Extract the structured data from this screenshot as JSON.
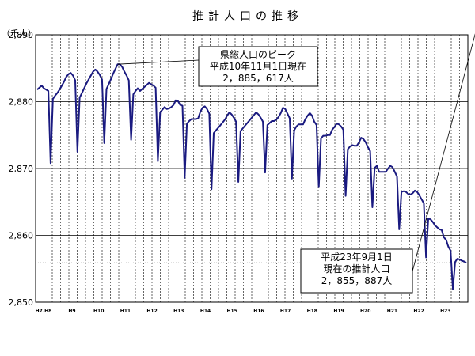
{
  "chart_data": {
    "type": "line",
    "title": "推計人口の推移",
    "ylabel": "（千人）",
    "xlabel": "",
    "ylim": [
      2850,
      2890
    ],
    "yticks": [
      {
        "value": 2850,
        "label": "2,850"
      },
      {
        "value": 2860,
        "label": "2,860"
      },
      {
        "value": 2870,
        "label": "2,870"
      },
      {
        "value": 2880,
        "label": "2,880"
      },
      {
        "value": 2890,
        "label": "2,890"
      }
    ],
    "xticks": [
      "H7.H8",
      "H9",
      "H10",
      "H11",
      "H12",
      "H13",
      "H14",
      "H15",
      "H16",
      "H17",
      "H18",
      "H19",
      "H20",
      "H21",
      "H22",
      "H23"
    ],
    "x_start_label": "H7.H8",
    "grid": {
      "major_y": true,
      "minor_x": true
    },
    "series_color": "#1a1a80",
    "series": [
      {
        "values": [
          2881.8,
          2882.1,
          2882.4,
          2882.0,
          2881.8,
          2881.6,
          2870.8,
          2880.4,
          2880.9,
          2881.3,
          2881.8,
          2882.4,
          2883.0,
          2883.7,
          2884.1,
          2884.3,
          2883.9,
          2883.2,
          2872.5,
          2880.6,
          2881.3,
          2882.0,
          2882.7,
          2883.3,
          2883.9,
          2884.5,
          2884.8,
          2884.5,
          2884.0,
          2883.3,
          2873.8,
          2881.9,
          2882.6,
          2883.4,
          2884.2,
          2884.9,
          2885.6,
          2885.6,
          2885.2,
          2884.5,
          2883.9,
          2883.2,
          2874.3,
          2881.1,
          2881.6,
          2882.0,
          2881.6,
          2881.9,
          2882.2,
          2882.5,
          2882.8,
          2882.6,
          2882.4,
          2882.1,
          2871.1,
          2878.4,
          2878.8,
          2879.2,
          2878.9,
          2879.0,
          2879.2,
          2879.5,
          2880.2,
          2880.1,
          2879.5,
          2879.4,
          2868.6,
          2876.7,
          2877.1,
          2877.4,
          2877.4,
          2877.4,
          2877.5,
          2878.5,
          2879.1,
          2879.3,
          2878.9,
          2878.2,
          2866.9,
          2875.3,
          2875.7,
          2876.1,
          2876.5,
          2876.9,
          2877.3,
          2877.9,
          2878.4,
          2878.1,
          2877.6,
          2877.0,
          2868.0,
          2875.6,
          2876.0,
          2876.4,
          2876.8,
          2877.2,
          2877.6,
          2878.0,
          2878.4,
          2878.1,
          2877.6,
          2877.0,
          2869.4,
          2876.5,
          2876.8,
          2877.1,
          2877.1,
          2877.3,
          2877.7,
          2878.3,
          2879.1,
          2878.9,
          2878.2,
          2877.5,
          2868.5,
          2875.7,
          2876.3,
          2876.6,
          2876.6,
          2876.6,
          2877.4,
          2877.9,
          2878.3,
          2877.9,
          2877.0,
          2876.5,
          2867.2,
          2874.5,
          2874.9,
          2874.9,
          2875.0,
          2875.0,
          2875.8,
          2876.2,
          2876.7,
          2876.6,
          2876.3,
          2875.8,
          2865.9,
          2872.9,
          2873.3,
          2873.5,
          2873.4,
          2873.4,
          2873.9,
          2874.6,
          2874.4,
          2873.9,
          2873.2,
          2872.6,
          2864.2,
          2870.1,
          2870.4,
          2869.5,
          2869.5,
          2869.5,
          2869.5,
          2870.0,
          2870.4,
          2870.2,
          2869.5,
          2868.8,
          2860.9,
          2866.5,
          2866.6,
          2866.5,
          2866.2,
          2866.1,
          2866.3,
          2866.7,
          2866.5,
          2866.0,
          2865.4,
          2864.8,
          2856.7,
          2862.5,
          2862.4,
          2862.0,
          2861.5,
          2861.2,
          2860.9,
          2860.8,
          2859.7,
          2859.3,
          2858.3,
          2857.7,
          2851.9,
          2856.0,
          2856.5,
          2856.4,
          2856.2,
          2856.1,
          2855.9
        ]
      }
    ],
    "annotations": [
      {
        "lines": [
          "県総人口のピーク",
          "平成10年11月1日現在",
          "2，885，617人"
        ],
        "point_index": 36
      },
      {
        "lines": [
          "平成23年9月1日",
          "現在の推計人口",
          "2，855，887人"
        ],
        "point_index": 200
      }
    ]
  }
}
